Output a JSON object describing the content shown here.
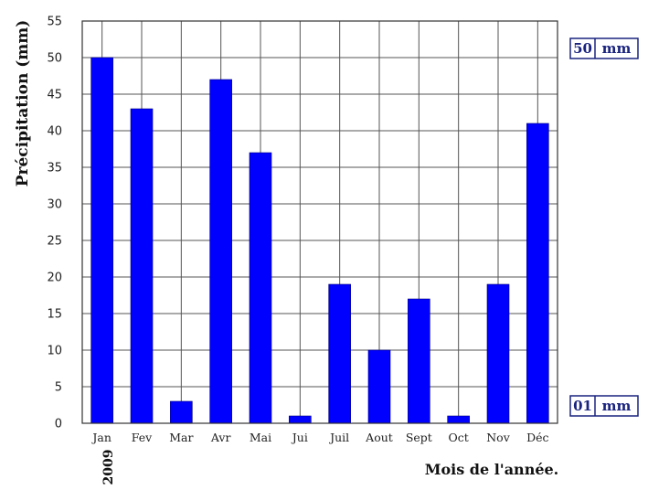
{
  "chart_data": {
    "type": "bar",
    "categories": [
      "Jan",
      "Fev",
      "Mar",
      "Avr",
      "Mai",
      "Jui",
      "Juil",
      "Aout",
      "Sept",
      "Oct",
      "Nov",
      "Déc"
    ],
    "values": [
      50,
      43,
      3,
      47,
      37,
      1,
      19,
      10,
      17,
      1,
      19,
      41
    ],
    "ylabel": "Précipitation  (mm)",
    "xlabel": "Mois de l'année.",
    "ylim": [
      0,
      55
    ],
    "yticks": [
      0,
      5,
      10,
      15,
      20,
      25,
      30,
      35,
      40,
      45,
      50,
      55
    ],
    "grid": true,
    "bar_color": "#0000ff",
    "year_label": "2009"
  },
  "legend_max": {
    "value": "50",
    "unit": "mm"
  },
  "legend_min": {
    "value": "01",
    "unit": "mm"
  }
}
